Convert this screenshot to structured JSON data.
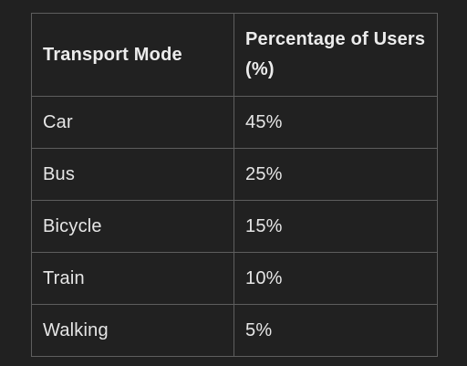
{
  "table": {
    "headers": [
      "Transport Mode",
      "Percentage of Users (%)"
    ],
    "rows": [
      {
        "mode": "Car",
        "percent": "45%"
      },
      {
        "mode": "Bus",
        "percent": "25%"
      },
      {
        "mode": "Bicycle",
        "percent": "15%"
      },
      {
        "mode": "Train",
        "percent": "10%"
      },
      {
        "mode": "Walking",
        "percent": "5%"
      }
    ]
  }
}
